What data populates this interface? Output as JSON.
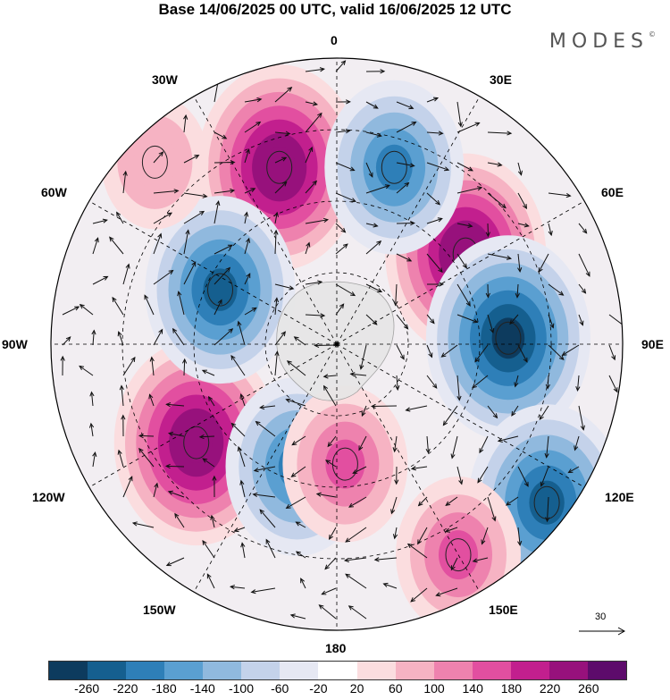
{
  "header": {
    "title": "Base 14/06/2025 00 UTC, valid 16/06/2025 12 UTC",
    "logo": "MODES",
    "logo_mark": "©"
  },
  "map": {
    "projection": "south-polar-stereographic",
    "longitude_labels": {
      "top": "0",
      "bottom": "180",
      "left": "90W",
      "right": "90E",
      "upper_left_1": "30W",
      "upper_left_2": "60W",
      "upper_right_1": "30E",
      "upper_right_2": "60E",
      "lower_left_1": "120W",
      "lower_left_2": "150W",
      "lower_right_1": "120E",
      "lower_right_2": "150E"
    },
    "anomaly_centers": [
      {
        "lon_deg": -18,
        "radius_frac": 0.65,
        "value": 260
      },
      {
        "lon_deg": 55,
        "radius_frac": 0.55,
        "value": 250
      },
      {
        "lon_deg": -125,
        "radius_frac": 0.6,
        "value": 260
      },
      {
        "lon_deg": -65,
        "radius_frac": 0.45,
        "value": -220
      },
      {
        "lon_deg": 88,
        "radius_frac": 0.6,
        "value": -260
      },
      {
        "lon_deg": 18,
        "radius_frac": 0.65,
        "value": -190
      },
      {
        "lon_deg": 127,
        "radius_frac": 0.92,
        "value": -240
      },
      {
        "lon_deg": -162,
        "radius_frac": 0.45,
        "value": -200
      },
      {
        "lon_deg": 176,
        "radius_frac": 0.42,
        "value": 150
      },
      {
        "lon_deg": 150,
        "radius_frac": 0.85,
        "value": 150
      },
      {
        "lon_deg": -45,
        "radius_frac": 0.9,
        "value": 100
      }
    ],
    "reference_vector": "30"
  },
  "colorbar": {
    "colors": [
      "#0d3b5e",
      "#155f8f",
      "#2e7fb8",
      "#5a9fd1",
      "#90b9de",
      "#c4d2ea",
      "#e6e8f3",
      "#ffffff",
      "#fbdddf",
      "#f6b3c3",
      "#ee82ae",
      "#e24fa0",
      "#c21f8e",
      "#97117c",
      "#5d0b6b"
    ],
    "tick_labels": [
      "-260",
      "-220",
      "-180",
      "-140",
      "-100",
      "-60",
      "-20",
      "20",
      "60",
      "100",
      "140",
      "180",
      "220",
      "260"
    ]
  }
}
